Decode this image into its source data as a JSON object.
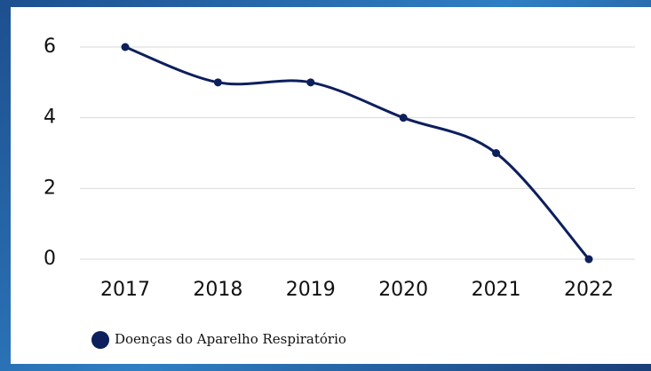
{
  "chart_data": {
    "type": "line",
    "categories": [
      "2017",
      "2018",
      "2019",
      "2020",
      "2021",
      "2022"
    ],
    "series": [
      {
        "name": "Doenças do Aparelho Respiratório",
        "color": "#0d1f5c",
        "values": [
          6,
          5,
          5,
          4,
          3,
          0
        ]
      }
    ],
    "ylim": [
      0,
      6
    ],
    "yticks": [
      0,
      2,
      4,
      6
    ],
    "grid": true,
    "legend": "bottom-left"
  }
}
